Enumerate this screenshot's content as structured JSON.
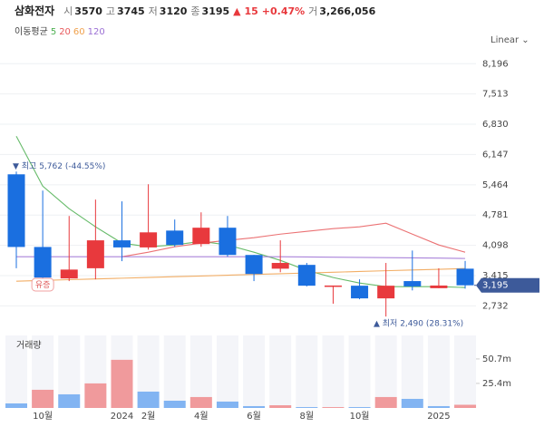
{
  "header": {
    "name": "삼화전자",
    "quote": [
      {
        "label": "시",
        "value": "3570"
      },
      {
        "label": "고",
        "value": "3745"
      },
      {
        "label": "저",
        "value": "3120"
      },
      {
        "label": "종",
        "value": "3195"
      }
    ],
    "change": "▲ 15",
    "change_pct": "+0.47%",
    "volume_label": "거",
    "volume_value": "3,266,056"
  },
  "chart_data": {
    "type": "candlestick",
    "legend_title": "이동평균",
    "scale_menu": "Linear",
    "categories": [
      null,
      "10월",
      null,
      null,
      "2024",
      "2월",
      null,
      "4월",
      null,
      "6월",
      null,
      "8월",
      null,
      "10월",
      null,
      null,
      "2025",
      null
    ],
    "open": [
      5700,
      4060,
      3350,
      3580,
      4210,
      4050,
      4430,
      4126,
      4495,
      3880,
      3570,
      3656,
      3170,
      3186,
      2900,
      3290,
      3130,
      3570
    ],
    "high": [
      5762,
      5333,
      4760,
      5130,
      5090,
      5476,
      4680,
      4842,
      4760,
      3880,
      4210,
      3700,
      3190,
      3330,
      3700,
      3980,
      3580,
      3745
    ],
    "low": [
      3580,
      3290,
      3290,
      3330,
      3740,
      4000,
      4065,
      4065,
      3840,
      3290,
      3490,
      3170,
      2780,
      2880,
      2490,
      3080,
      3130,
      3120
    ],
    "close": [
      4060,
      3370,
      3550,
      4210,
      4050,
      4390,
      4106,
      4495,
      3880,
      3450,
      3700,
      3186,
      3190,
      2900,
      3186,
      3170,
      3190,
      3195
    ],
    "up_color": "#e8393d",
    "down_color": "#1a6fe0",
    "series": [
      {
        "name": "5",
        "color": "#4caf50",
        "values": [
          6560,
          5435,
          4924,
          4515,
          4147,
          4065,
          4106,
          4188,
          4106,
          3942,
          3758,
          3533,
          3370,
          3247,
          3165,
          3165,
          3165,
          3145
        ]
      },
      {
        "name": "20",
        "color": "#e8595c",
        "values": [
          null,
          null,
          null,
          null,
          3840,
          3942,
          4065,
          4147,
          4210,
          4270,
          4350,
          4413,
          4474,
          4515,
          4597,
          4350,
          4106,
          3942
        ]
      },
      {
        "name": "60",
        "color": "#f0a04b",
        "values": [
          3288,
          3305,
          3322,
          3339,
          3355,
          3372,
          3389,
          3406,
          3423,
          3440,
          3456,
          3473,
          3490,
          3507,
          3524,
          3540,
          3557,
          3574
        ]
      },
      {
        "name": "120",
        "color": "#9b6fd4",
        "values": [
          3840,
          3840,
          3840,
          3840,
          3840,
          3840,
          3840,
          3840,
          3840,
          3840,
          3840,
          3835,
          3830,
          3825,
          3820,
          3815,
          3810,
          3800
        ]
      }
    ],
    "ylim": [
      2350,
      8550
    ],
    "yticks": [
      {
        "value": 8196,
        "label": "8,196"
      },
      {
        "value": 7513,
        "label": "7,513"
      },
      {
        "value": 6830,
        "label": "6,830"
      },
      {
        "value": 6147,
        "label": "6,147"
      },
      {
        "value": 5464,
        "label": "5,464"
      },
      {
        "value": 4781,
        "label": "4,781"
      },
      {
        "value": 4098,
        "label": "4,098"
      },
      {
        "value": 3415,
        "label": "3,415"
      },
      {
        "value": 2732,
        "label": "2,732"
      }
    ],
    "grid": true,
    "high_label": "▼ 최고 5,762 (-44.55%)",
    "low_label": "▲ 최저 2,490 (28.31%)",
    "event_label": "유증",
    "price_tag": "3,195",
    "volume_title": "거래량",
    "volume": [
      4700000,
      18800000,
      14100000,
      25400000,
      49800000,
      16900000,
      7500000,
      11300000,
      6600000,
      1900000,
      2800000,
      900000,
      900000,
      900000,
      11300000,
      9400000,
      1900000,
      3300000
    ],
    "volume_colors": [
      "#82b4f2",
      "#f09a9c",
      "#82b4f2",
      "#f09a9c",
      "#f09a9c",
      "#82b4f2",
      "#82b4f2",
      "#f09a9c",
      "#82b4f2",
      "#82b4f2",
      "#f09a9c",
      "#82b4f2",
      "#f09a9c",
      "#82b4f2",
      "#f09a9c",
      "#82b4f2",
      "#82b4f2",
      "#f09a9c"
    ],
    "volume_ylim": [
      0,
      75000000
    ],
    "volume_ticks": [
      {
        "value": 50700000,
        "label": "50.7m"
      },
      {
        "value": 25400000,
        "label": "25.4m"
      }
    ]
  }
}
